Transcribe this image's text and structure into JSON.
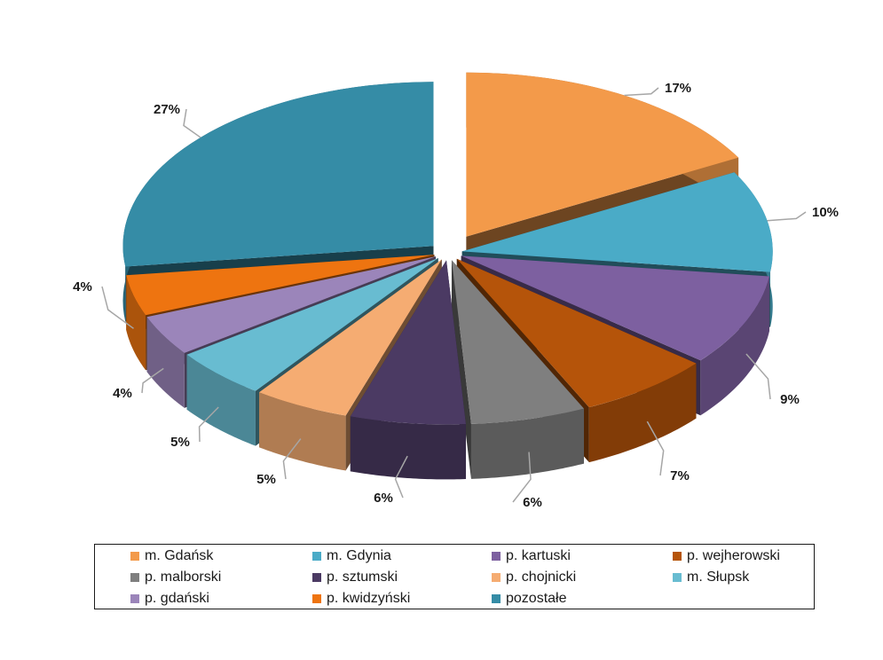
{
  "chart_data": {
    "type": "pie",
    "style": "3d-exploded",
    "title": "",
    "categories": [
      "m. Gdańsk",
      "m. Gdynia",
      "p. kartuski",
      "p. wejherowski",
      "p. malborski",
      "p. sztumski",
      "p. chojnicki",
      "m. Słupsk",
      "p. gdański",
      "p. kwidzyński",
      "pozostałe"
    ],
    "values": [
      17,
      10,
      9,
      7,
      6,
      6,
      5,
      5,
      4,
      4,
      27
    ],
    "labels": [
      "17%",
      "10%",
      "9%",
      "7%",
      "6%",
      "6%",
      "5%",
      "5%",
      "4%",
      "4%",
      "27%"
    ],
    "colors": [
      "#F39A4A",
      "#4AABC7",
      "#7D60A0",
      "#B5540A",
      "#7F7F7F",
      "#4B3A63",
      "#F5AC72",
      "#68BCD1",
      "#9B85BA",
      "#EE7410",
      "#358CA6"
    ],
    "legend_position": "bottom"
  }
}
